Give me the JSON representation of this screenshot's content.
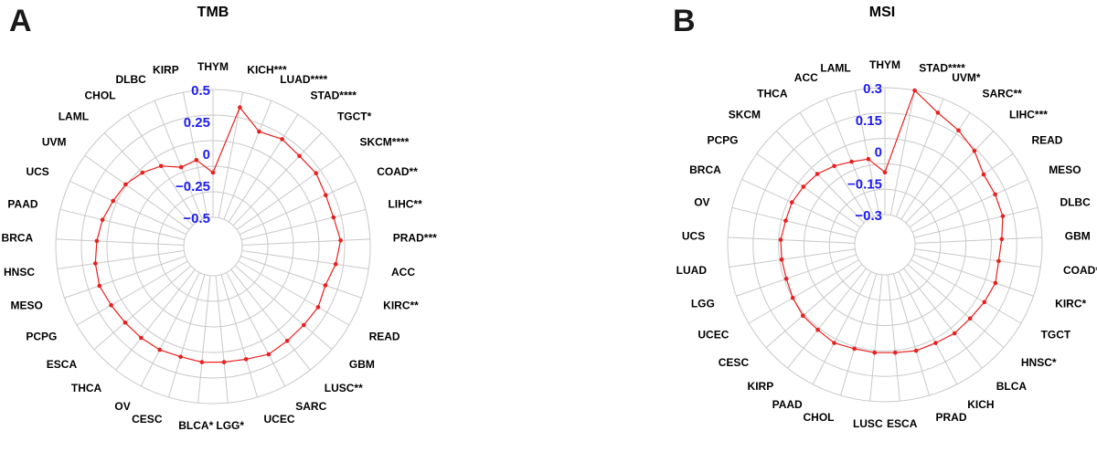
{
  "colors": {
    "series": "#e8201e",
    "tick": "#1c1cf0",
    "grid": "#c8c8c8",
    "text": "#000000"
  },
  "chart_data": [
    {
      "type": "radar",
      "panel_label": "A",
      "title": "TMB",
      "rlim": [
        -0.5,
        0.5
      ],
      "ticks": [
        "0.5",
        "0.25",
        "0",
        "−0.25",
        "−0.5"
      ],
      "tick_values": [
        0.5,
        0.25,
        0,
        -0.25,
        -0.5
      ],
      "grid": true,
      "categories": [
        "THYM",
        "KICH***",
        "LUAD****",
        "STAD****",
        "TGCT*",
        "SKCM****",
        "COAD**",
        "LIHC**",
        "PRAD***",
        "ACC",
        "KIRC**",
        "READ",
        "GBM",
        "LUSC**",
        "SARC",
        "UCEC",
        "LGG*",
        "BLCA*",
        "CESC",
        "OV",
        "THCA",
        "ESCA",
        "PCPG",
        "MESO",
        "HNSC",
        "BRCA",
        "PAAD",
        "UCS",
        "UVM",
        "LAML",
        "CHOL",
        "DLBC",
        "KIRP"
      ],
      "values": [
        -0.15,
        0.38,
        0.24,
        0.27,
        0.25,
        0.26,
        0.24,
        0.24,
        0.27,
        0.24,
        0.2,
        0.22,
        0.21,
        0.21,
        0.22,
        0.19,
        0.18,
        0.18,
        0.17,
        0.18,
        0.18,
        0.18,
        0.19,
        0.21,
        0.2,
        0.18,
        0.16,
        0.13,
        0.11,
        0.07,
        0.02,
        -0.06,
        -0.04
      ]
    },
    {
      "type": "radar",
      "panel_label": "B",
      "title": "MSI",
      "rlim": [
        -0.3,
        0.3
      ],
      "ticks": [
        "0.3",
        "0.15",
        "0",
        "−0.15",
        "−0.3"
      ],
      "tick_values": [
        0.3,
        0.15,
        0,
        -0.15,
        -0.3
      ],
      "grid": true,
      "categories": [
        "THYM",
        "STAD****",
        "UVM*",
        "SARC**",
        "LIHC***",
        "READ",
        "MESO",
        "DLBC",
        "GBM",
        "COAD*",
        "KIRC*",
        "TGCT",
        "HNSC*",
        "BLCA",
        "KICH",
        "PRAD",
        "ESCA",
        "LUSC",
        "CHOL",
        "PAAD",
        "KIRP",
        "CESC",
        "UCEC",
        "LGG",
        "LUAD",
        "UCS",
        "OV",
        "BRCA",
        "PCPG",
        "SKCM",
        "THCA",
        "ACC",
        "LAML"
      ],
      "values": [
        -0.1,
        0.3,
        0.23,
        0.2,
        0.17,
        0.13,
        0.13,
        0.13,
        0.11,
        0.1,
        0.11,
        0.1,
        0.09,
        0.09,
        0.08,
        0.08,
        0.07,
        0.07,
        0.07,
        0.08,
        0.07,
        0.07,
        0.06,
        0.05,
        0.05,
        0.05,
        0.04,
        0.04,
        0.03,
        0.02,
        0.0,
        -0.02,
        -0.03
      ]
    }
  ]
}
